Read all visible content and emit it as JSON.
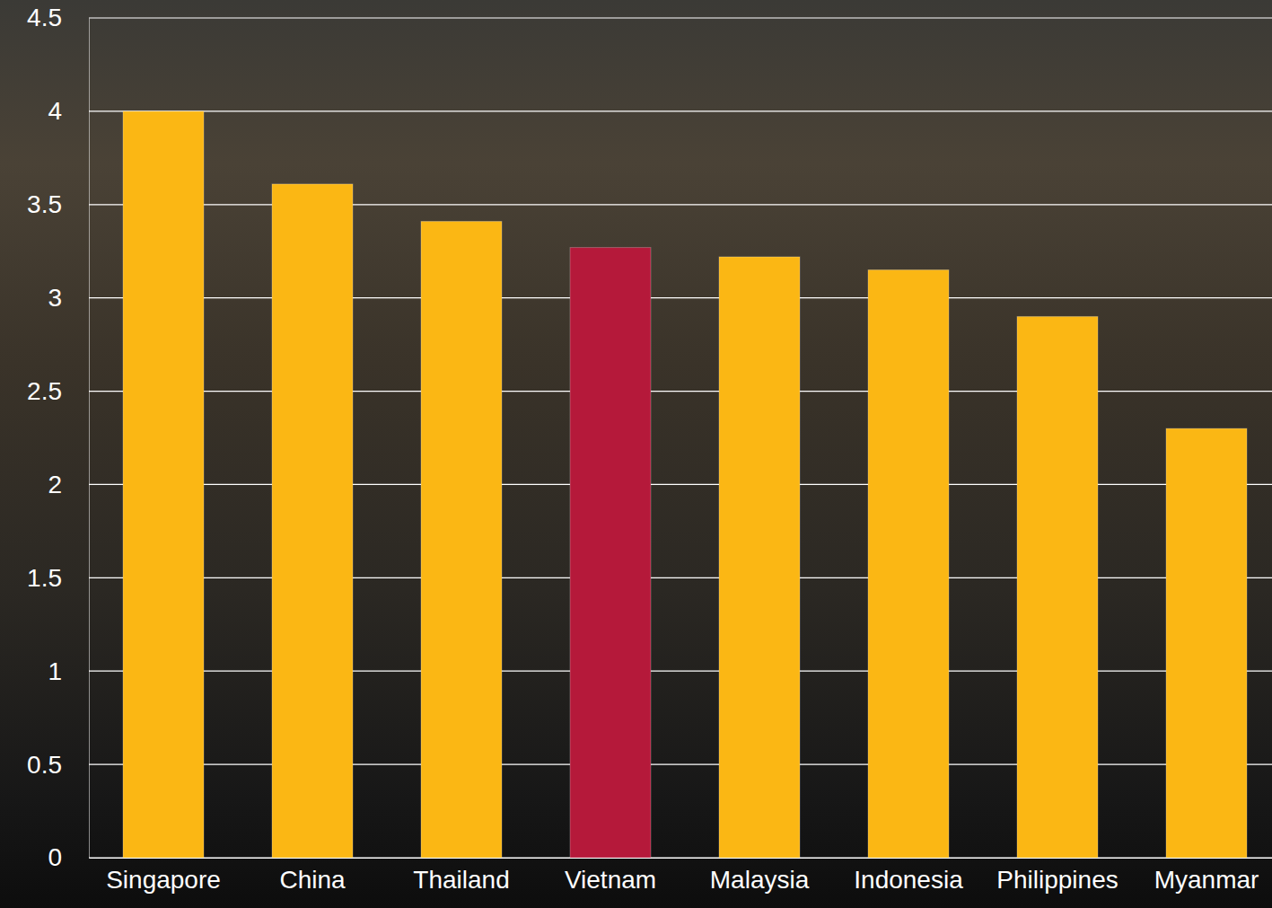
{
  "chart_data": {
    "type": "bar",
    "categories": [
      "Singapore",
      "China",
      "Thailand",
      "Vietnam",
      "Malaysia",
      "Indonesia",
      "Philippines",
      "Myanmar"
    ],
    "values": [
      4.0,
      3.61,
      3.41,
      3.27,
      3.22,
      3.15,
      2.9,
      2.3
    ],
    "colors": [
      "#fbb714",
      "#fbb714",
      "#fbb714",
      "#b5193a",
      "#fbb714",
      "#fbb714",
      "#fbb714",
      "#fbb714"
    ],
    "ylim": [
      0,
      4.5
    ],
    "yticks": [
      0,
      0.5,
      1,
      1.5,
      2,
      2.5,
      3,
      3.5,
      4,
      4.5
    ],
    "grid": true
  }
}
